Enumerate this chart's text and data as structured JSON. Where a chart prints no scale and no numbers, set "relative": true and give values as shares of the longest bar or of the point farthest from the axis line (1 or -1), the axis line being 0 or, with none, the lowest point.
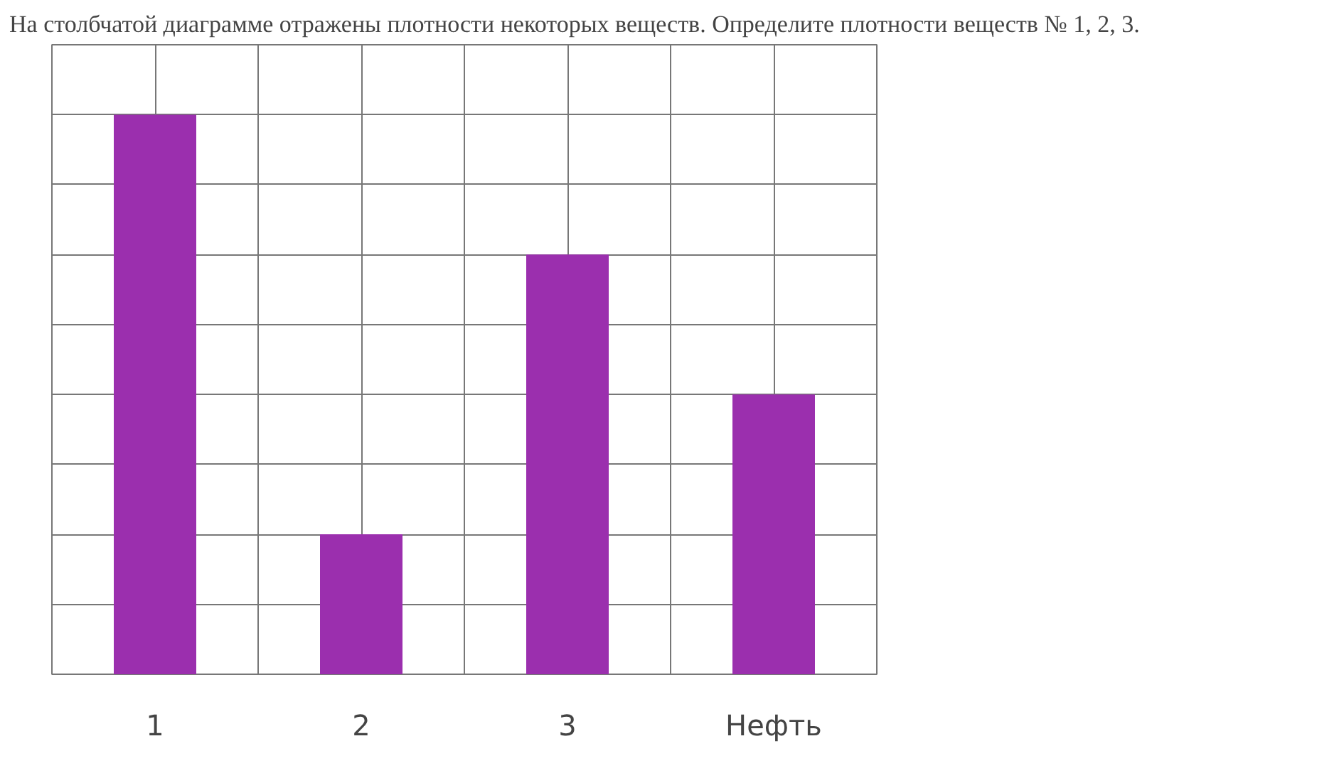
{
  "chart_data": {
    "type": "bar",
    "title": "На столбчатой диаграмме отражены плотности некоторых веществ. Определите плотности веществ № 1, 2, 3.",
    "categories": [
      "1",
      "2",
      "3",
      "Нефть"
    ],
    "values": [
      1,
      0.25,
      0.75,
      0.5
    ],
    "color": "#9b2fae",
    "relative": true,
    "grid": true
  }
}
